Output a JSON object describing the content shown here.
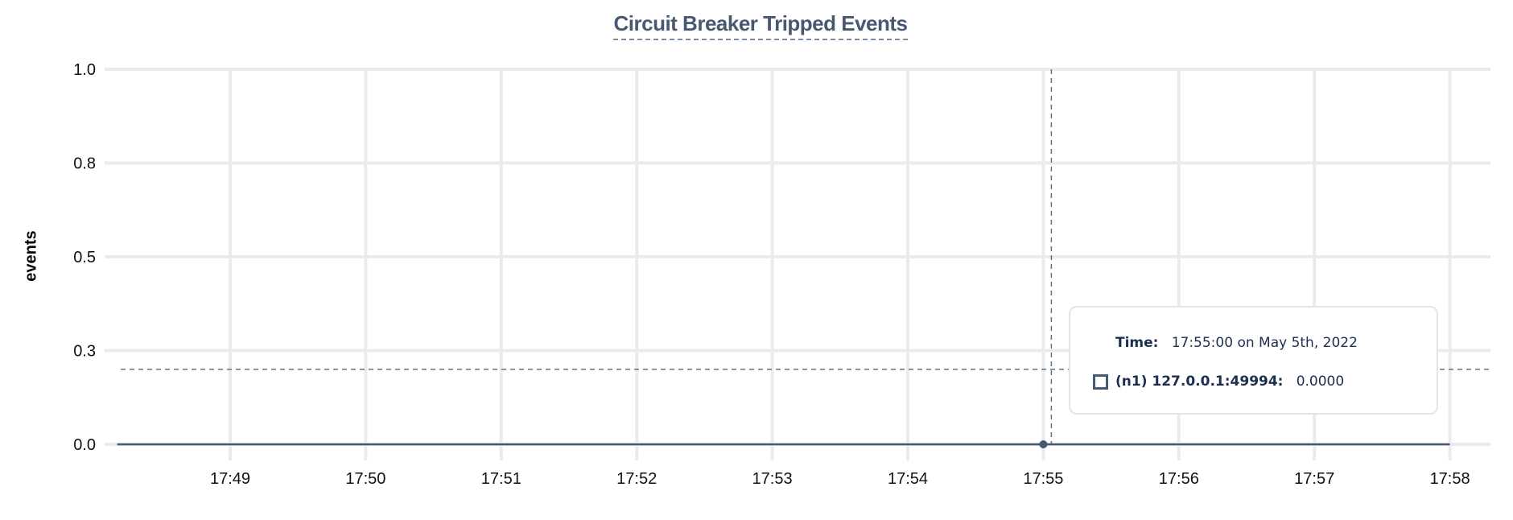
{
  "chart_data": {
    "type": "line",
    "title": "Circuit Breaker Tripped Events",
    "ylabel": "events",
    "xlabel": "",
    "ylim": [
      0,
      1
    ],
    "y_ticks": [
      0,
      0.25,
      0.5,
      0.75,
      1
    ],
    "y_tick_labels": [
      "0.0",
      "0.3",
      "0.5",
      "0.8",
      "1.0"
    ],
    "x_tick_labels": [
      "17:49",
      "17:50",
      "17:51",
      "17:52",
      "17:53",
      "17:54",
      "17:55",
      "17:56",
      "17:57",
      "17:58"
    ],
    "x_range": [
      "17:48:10",
      "17:58:00"
    ],
    "grid": true,
    "series": [
      {
        "name": "(n1) 127.0.0.1:49994",
        "color": "#475872",
        "x": [
          "17:48:10",
          "17:58:00"
        ],
        "y": [
          0,
          0
        ]
      }
    ],
    "hover": {
      "x": "17:55:00",
      "y": 0,
      "crosshair_y": 0.2
    }
  },
  "tooltip": {
    "time_label": "Time:",
    "time_value": "17:55:00 on May 5th, 2022",
    "series_label": "(n1) 127.0.0.1:49994:",
    "series_value": "0.0000"
  }
}
